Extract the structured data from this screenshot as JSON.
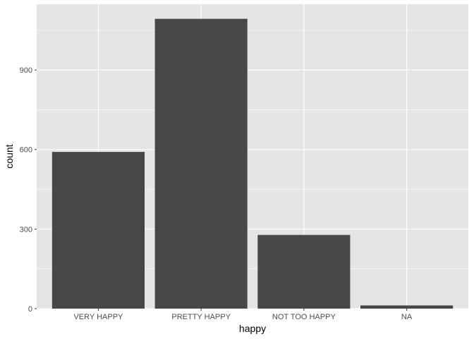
{
  "chart_data": {
    "type": "bar",
    "title": "",
    "xlabel": "happy",
    "ylabel": "count",
    "categories": [
      "VERY HAPPY",
      "PRETTY HAPPY",
      "NOT TOO HAPPY",
      "NA"
    ],
    "values": [
      591,
      1093,
      278,
      12
    ],
    "ylim": [
      0,
      1148
    ],
    "yticks": [
      0,
      300,
      600,
      900
    ],
    "grid": true,
    "legend": "none",
    "colors": {
      "panel": "#e5e5e5",
      "grid_major": "#ffffff",
      "bar": "#474747",
      "tick_label": "#4d4d4d",
      "tick": "#333333"
    }
  }
}
